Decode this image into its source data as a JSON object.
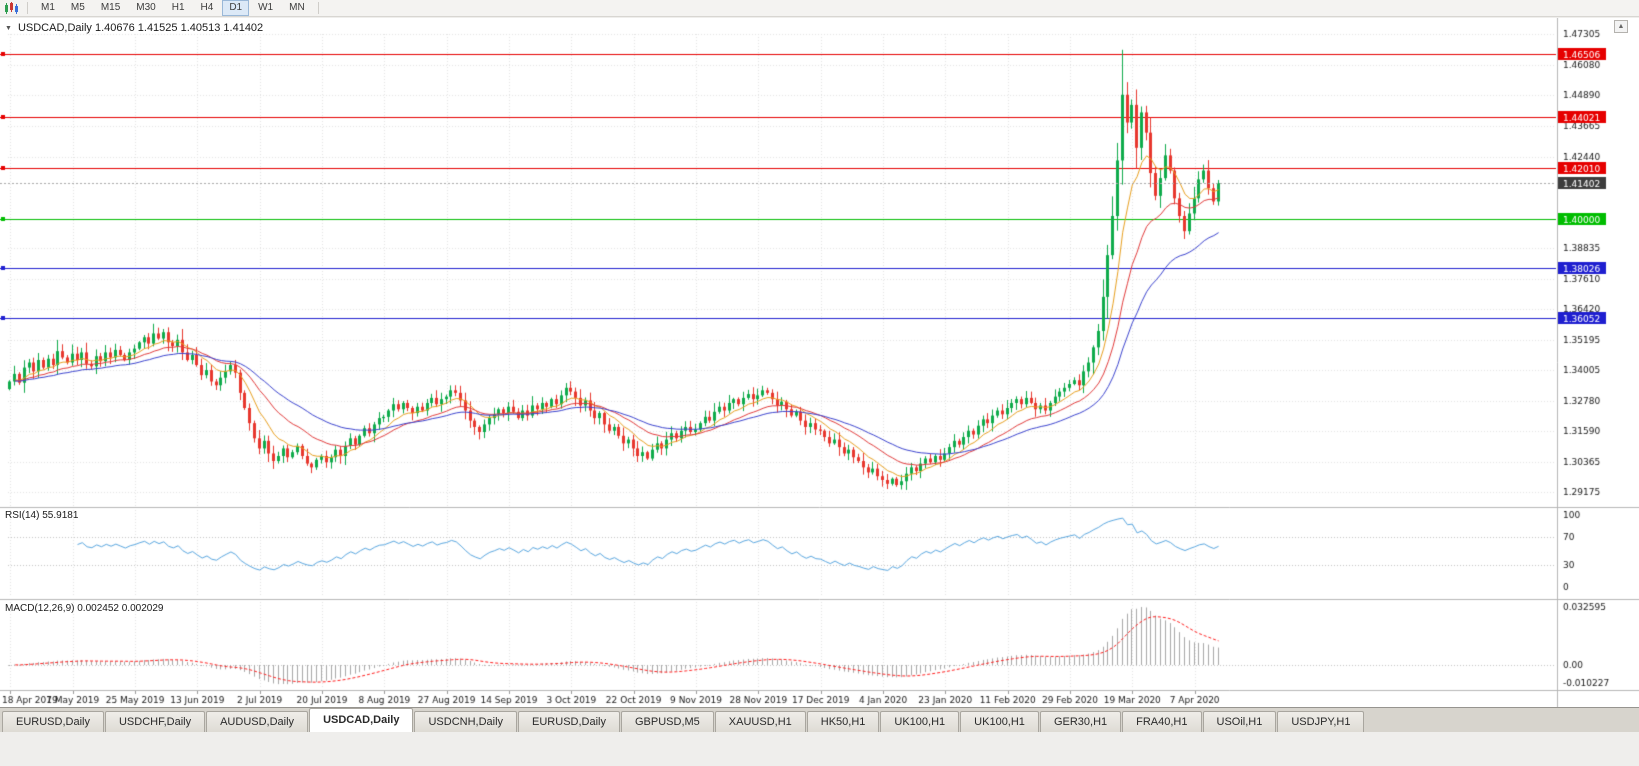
{
  "toolbar": {
    "timeframes": [
      "M1",
      "M5",
      "M15",
      "M30",
      "H1",
      "H4",
      "D1",
      "W1",
      "MN"
    ],
    "active_timeframe": "D1"
  },
  "chart_header": {
    "collapse_icon": "▼",
    "title_text": "USDCAD,Daily  1.40676 1.41525 1.40513 1.41402"
  },
  "scrollbar": {
    "up_arrow_icon": "▲"
  },
  "tabs": [
    "EURUSD,Daily",
    "USDCHF,Daily",
    "AUDUSD,Daily",
    "USDCAD,Daily",
    "USDCNH,Daily",
    "EURUSD,Daily",
    "GBPUSD,M5",
    "XAUUSD,H1",
    "HK50,H1",
    "UK100,H1",
    "UK100,H1",
    "GER30,H1",
    "FRA40,H1",
    "USOil,H1",
    "USDJPY,H1"
  ],
  "active_tab_index": 3,
  "chart_data": {
    "type": "candlestick",
    "symbol": "USDCAD",
    "timeframe": "Daily",
    "ohlc_last": {
      "open": 1.40676,
      "high": 1.41525,
      "low": 1.40513,
      "close": 1.41402
    },
    "x_labels": [
      "18 Apr 2019",
      "7 May 2019",
      "25 May 2019",
      "13 Jun 2019",
      "2 Jul 2019",
      "20 Jul 2019",
      "8 Aug 2019",
      "27 Aug 2019",
      "14 Sep 2019",
      "3 Oct 2019",
      "22 Oct 2019",
      "9 Nov 2019",
      "28 Nov 2019",
      "17 Dec 2019",
      "4 Jan 2020",
      "23 Jan 2020",
      "11 Feb 2020",
      "29 Feb 2020",
      "19 Mar 2020",
      "7 Apr 2020"
    ],
    "x_label_step": 13,
    "y_ticks": [
      1.47305,
      1.4608,
      1.4489,
      1.43665,
      1.4244,
      1.38835,
      1.3761,
      1.3642,
      1.35195,
      1.34005,
      1.3278,
      1.3159,
      1.30365,
      1.29175
    ],
    "closes": [
      1.3355,
      1.3385,
      1.335,
      1.341,
      1.343,
      1.3395,
      1.344,
      1.341,
      1.3445,
      1.342,
      1.3475,
      1.345,
      1.343,
      1.3465,
      1.344,
      1.347,
      1.3425,
      1.3415,
      1.3455,
      1.3435,
      1.347,
      1.345,
      1.348,
      1.346,
      1.344,
      1.347,
      1.3485,
      1.351,
      1.353,
      1.3505,
      1.3545,
      1.3525,
      1.355,
      1.351,
      1.3495,
      1.352,
      1.347,
      1.344,
      1.346,
      1.342,
      1.338,
      1.34,
      1.3355,
      1.334,
      1.337,
      1.3395,
      1.342,
      1.339,
      1.331,
      1.325,
      1.319,
      1.313,
      1.309,
      1.312,
      1.307,
      1.304,
      1.306,
      1.309,
      1.3055,
      1.3075,
      1.31,
      1.306,
      1.303,
      1.3015,
      1.3045,
      1.306,
      1.3035,
      1.3055,
      1.3085,
      1.306,
      1.31,
      1.313,
      1.3105,
      1.314,
      1.317,
      1.315,
      1.3185,
      1.321,
      1.3215,
      1.324,
      1.3265,
      1.3245,
      1.327,
      1.325,
      1.323,
      1.3255,
      1.324,
      1.327,
      1.329,
      1.3265,
      1.3285,
      1.3295,
      1.332,
      1.331,
      1.328,
      1.324,
      1.32,
      1.3175,
      1.3155,
      1.3185,
      1.321,
      1.3225,
      1.3245,
      1.323,
      1.3255,
      1.3235,
      1.321,
      1.324,
      1.322,
      1.326,
      1.3245,
      1.327,
      1.3255,
      1.3285,
      1.3265,
      1.33,
      1.333,
      1.3315,
      1.329,
      1.326,
      1.328,
      1.324,
      1.321,
      1.323,
      1.3185,
      1.316,
      1.3175,
      1.314,
      1.311,
      1.3125,
      1.309,
      1.306,
      1.3075,
      1.305,
      1.3085,
      1.311,
      1.309,
      1.3125,
      1.315,
      1.313,
      1.316,
      1.3175,
      1.3155,
      1.3165,
      1.319,
      1.3215,
      1.32,
      1.3235,
      1.3255,
      1.324,
      1.327,
      1.3285,
      1.3265,
      1.329,
      1.3305,
      1.3285,
      1.33,
      1.332,
      1.331,
      1.3285,
      1.326,
      1.3275,
      1.3245,
      1.322,
      1.3235,
      1.32,
      1.3175,
      1.319,
      1.3165,
      1.316,
      1.3135,
      1.311,
      1.3125,
      1.3095,
      1.307,
      1.3085,
      1.3055,
      1.304,
      1.3015,
      1.2995,
      1.301,
      1.298,
      1.2965,
      1.295,
      1.297,
      1.2945,
      1.296,
      1.299,
      1.3015,
      1.3,
      1.303,
      1.305,
      1.3035,
      1.306,
      1.3045,
      1.307,
      1.3095,
      1.312,
      1.3105,
      1.3135,
      1.316,
      1.3145,
      1.318,
      1.3205,
      1.319,
      1.322,
      1.324,
      1.3225,
      1.325,
      1.327,
      1.3285,
      1.3265,
      1.329,
      1.327,
      1.3245,
      1.326,
      1.324,
      1.327,
      1.3295,
      1.3315,
      1.333,
      1.3345,
      1.336,
      1.334,
      1.3395,
      1.343,
      1.349,
      1.3555,
      1.369,
      1.3855,
      1.401,
      1.423,
      1.449,
      1.438,
      1.445,
      1.428,
      1.442,
      1.434,
      1.418,
      1.409,
      1.416,
      1.425,
      1.419,
      1.408,
      1.401,
      1.395,
      1.402,
      1.408,
      1.4155,
      1.419,
      1.412,
      1.40676,
      1.41402
    ],
    "overrides": {
      "185": {
        "l": 1.2938
      },
      "232": {
        "h": 1.4668
      },
      "233": {
        "h": 1.454
      },
      "245": {
        "l": 1.3919
      },
      "252": {
        "o": 1.40676,
        "h": 1.41525,
        "l": 1.40513,
        "c": 1.41402
      }
    },
    "candle_up_color": "#0fab4b",
    "candle_down_color": "#e8372e",
    "horizontal_lines": [
      {
        "price": 1.46506,
        "label": "1.46506",
        "color": "#e60000"
      },
      {
        "price": 1.44021,
        "label": "1.44021",
        "color": "#e60000"
      },
      {
        "price": 1.4201,
        "label": "1.42010",
        "color": "#e60000"
      },
      {
        "price": 1.4,
        "label": "1.40000",
        "color": "#00bd00"
      },
      {
        "price": 1.38026,
        "label": "1.38026",
        "color": "#1f1fd0"
      },
      {
        "price": 1.36052,
        "label": "1.36052",
        "color": "#1f1fd0"
      }
    ],
    "current_price": {
      "price": 1.41402,
      "label": "1.41402",
      "box_color": "#3d3d3d",
      "line_color": "#a8a8a8"
    },
    "moving_averages": [
      {
        "type": "ema",
        "period": 8,
        "color": "#e8a020"
      },
      {
        "type": "ema",
        "period": 18,
        "color": "#e23b3b"
      },
      {
        "type": "ema",
        "period": 34,
        "color": "#3b43cf"
      }
    ],
    "rsi": {
      "label": "RSI(14) 55.9181",
      "period": 14,
      "value": 55.9181,
      "levels": [
        100,
        70,
        30,
        0
      ],
      "line_color": "#5aa7e0"
    },
    "macd": {
      "label": "MACD(12,26,9) 0.002452 0.002029",
      "fast": 12,
      "slow": 26,
      "signal": 9,
      "value": 0.002452,
      "signal_value": 0.002029,
      "axis_labels": [
        "0.032595",
        "0.00",
        "-0.010227"
      ],
      "axis_values": [
        0.032595,
        0,
        -0.010227
      ],
      "hist_color": "#a8a8a8",
      "signal_color": "#ff1f1f"
    }
  }
}
